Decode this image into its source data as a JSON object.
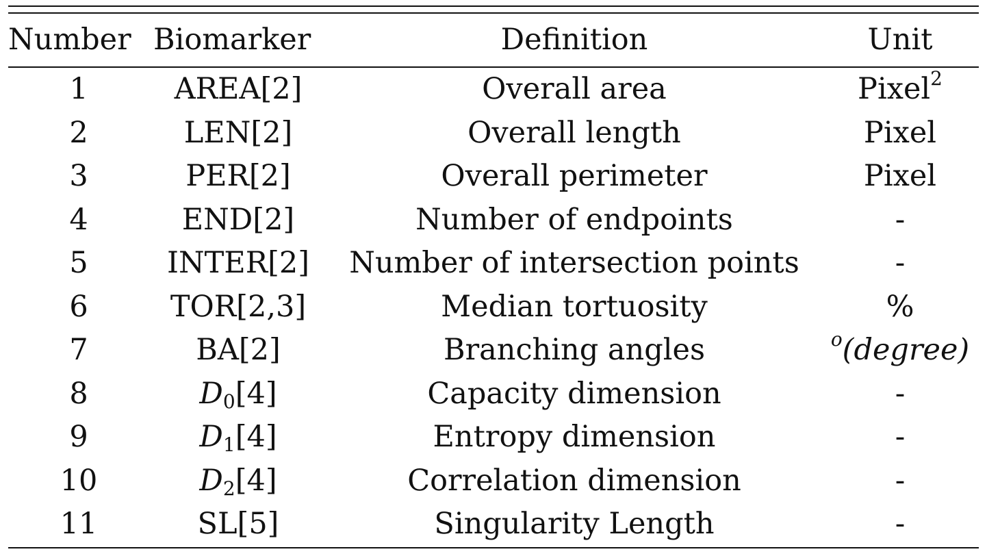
{
  "table": {
    "headers": {
      "number": "Number",
      "biomarker": "Biomarker",
      "definition": "Definition",
      "unit": "Unit"
    },
    "rows": [
      {
        "number": "1",
        "biomarker": "AREA[2]",
        "definition": "Overall area",
        "unit_base": "Pixel",
        "unit_sup": "2"
      },
      {
        "number": "2",
        "biomarker": "LEN[2]",
        "definition": "Overall length",
        "unit": "Pixel"
      },
      {
        "number": "3",
        "biomarker": "PER[2]",
        "definition": "Overall perimeter",
        "unit": "Pixel"
      },
      {
        "number": "4",
        "biomarker": "END[2]",
        "definition": "Number of endpoints",
        "unit": "-"
      },
      {
        "number": "5",
        "biomarker": "INTER[2]",
        "definition": "Number of intersection points",
        "unit": "-"
      },
      {
        "number": "6",
        "biomarker": "TOR[2,3]",
        "definition": "Median tortuosity",
        "unit": "%"
      },
      {
        "number": "7",
        "biomarker": "BA[2]",
        "definition": "Branching angles",
        "unit_sup": "o",
        "unit_paren": "(degree)"
      },
      {
        "number": "8",
        "biomarker_symbol": "D",
        "biomarker_sub": "0",
        "biomarker_ref": "[4]",
        "definition": "Capacity dimension",
        "unit": "-"
      },
      {
        "number": "9",
        "biomarker_symbol": "D",
        "biomarker_sub": "1",
        "biomarker_ref": "[4]",
        "definition": "Entropy dimension",
        "unit": "-"
      },
      {
        "number": "10",
        "biomarker_symbol": "D",
        "biomarker_sub": "2",
        "biomarker_ref": "[4]",
        "definition": "Correlation dimension",
        "unit": "-"
      },
      {
        "number": "11",
        "biomarker": "SL[5]",
        "definition": "Singularity Length",
        "unit": "-"
      }
    ]
  }
}
